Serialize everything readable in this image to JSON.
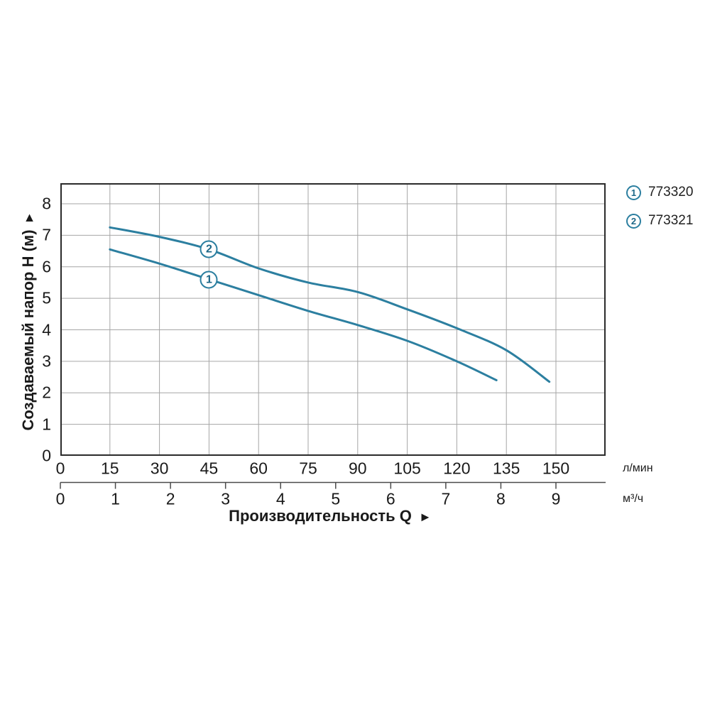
{
  "chart": {
    "y_axis": {
      "title": "Создаваемый напор H (м)",
      "arrow": "▲",
      "ticks": [
        0,
        1,
        2,
        3,
        4,
        5,
        6,
        7,
        8
      ]
    },
    "x_axis": {
      "title": "Производительность Q",
      "arrow": "►",
      "scale_lmin": {
        "unit": "л/мин",
        "ticks": [
          0,
          15,
          30,
          45,
          60,
          75,
          90,
          105,
          120,
          135,
          150
        ]
      },
      "scale_m3h": {
        "unit": "м³/ч",
        "ticks": [
          0,
          1,
          2,
          3,
          4,
          5,
          6,
          7,
          8,
          9
        ]
      }
    },
    "legend": [
      {
        "marker": "1",
        "label": "773320"
      },
      {
        "marker": "2",
        "label": "773321"
      }
    ],
    "colors": {
      "curve": "#2c7fa0",
      "marker_text": "#1d6787",
      "grid": "#a6a6a6",
      "frame": "#2b2b2b",
      "text": "#1a1a1a"
    },
    "chart_data": {
      "type": "line",
      "title": "",
      "xlabel": "Производительность Q",
      "ylabel": "Создаваемый напор H (м)",
      "x_units": [
        "л/мин",
        "м³/ч"
      ],
      "x_unit_relation": "1 м³/ч = 16.667 л/мин",
      "xlim_lmin": [
        0,
        165
      ],
      "ylim": [
        0,
        8.65
      ],
      "grid": true,
      "legend_position": "top-right-outside",
      "series": [
        {
          "name": "773320",
          "marker": "1",
          "marker_at_lmin": 45,
          "points_lmin_m": [
            [
              15,
              6.55
            ],
            [
              30,
              6.1
            ],
            [
              45,
              5.6
            ],
            [
              60,
              5.1
            ],
            [
              75,
              4.6
            ],
            [
              90,
              4.15
            ],
            [
              105,
              3.65
            ],
            [
              120,
              3.0
            ],
            [
              132,
              2.4
            ]
          ]
        },
        {
          "name": "773321",
          "marker": "2",
          "marker_at_lmin": 45,
          "points_lmin_m": [
            [
              15,
              7.25
            ],
            [
              30,
              6.95
            ],
            [
              45,
              6.55
            ],
            [
              60,
              5.95
            ],
            [
              75,
              5.5
            ],
            [
              90,
              5.2
            ],
            [
              105,
              4.65
            ],
            [
              120,
              4.05
            ],
            [
              135,
              3.35
            ],
            [
              148,
              2.35
            ]
          ]
        }
      ]
    }
  }
}
